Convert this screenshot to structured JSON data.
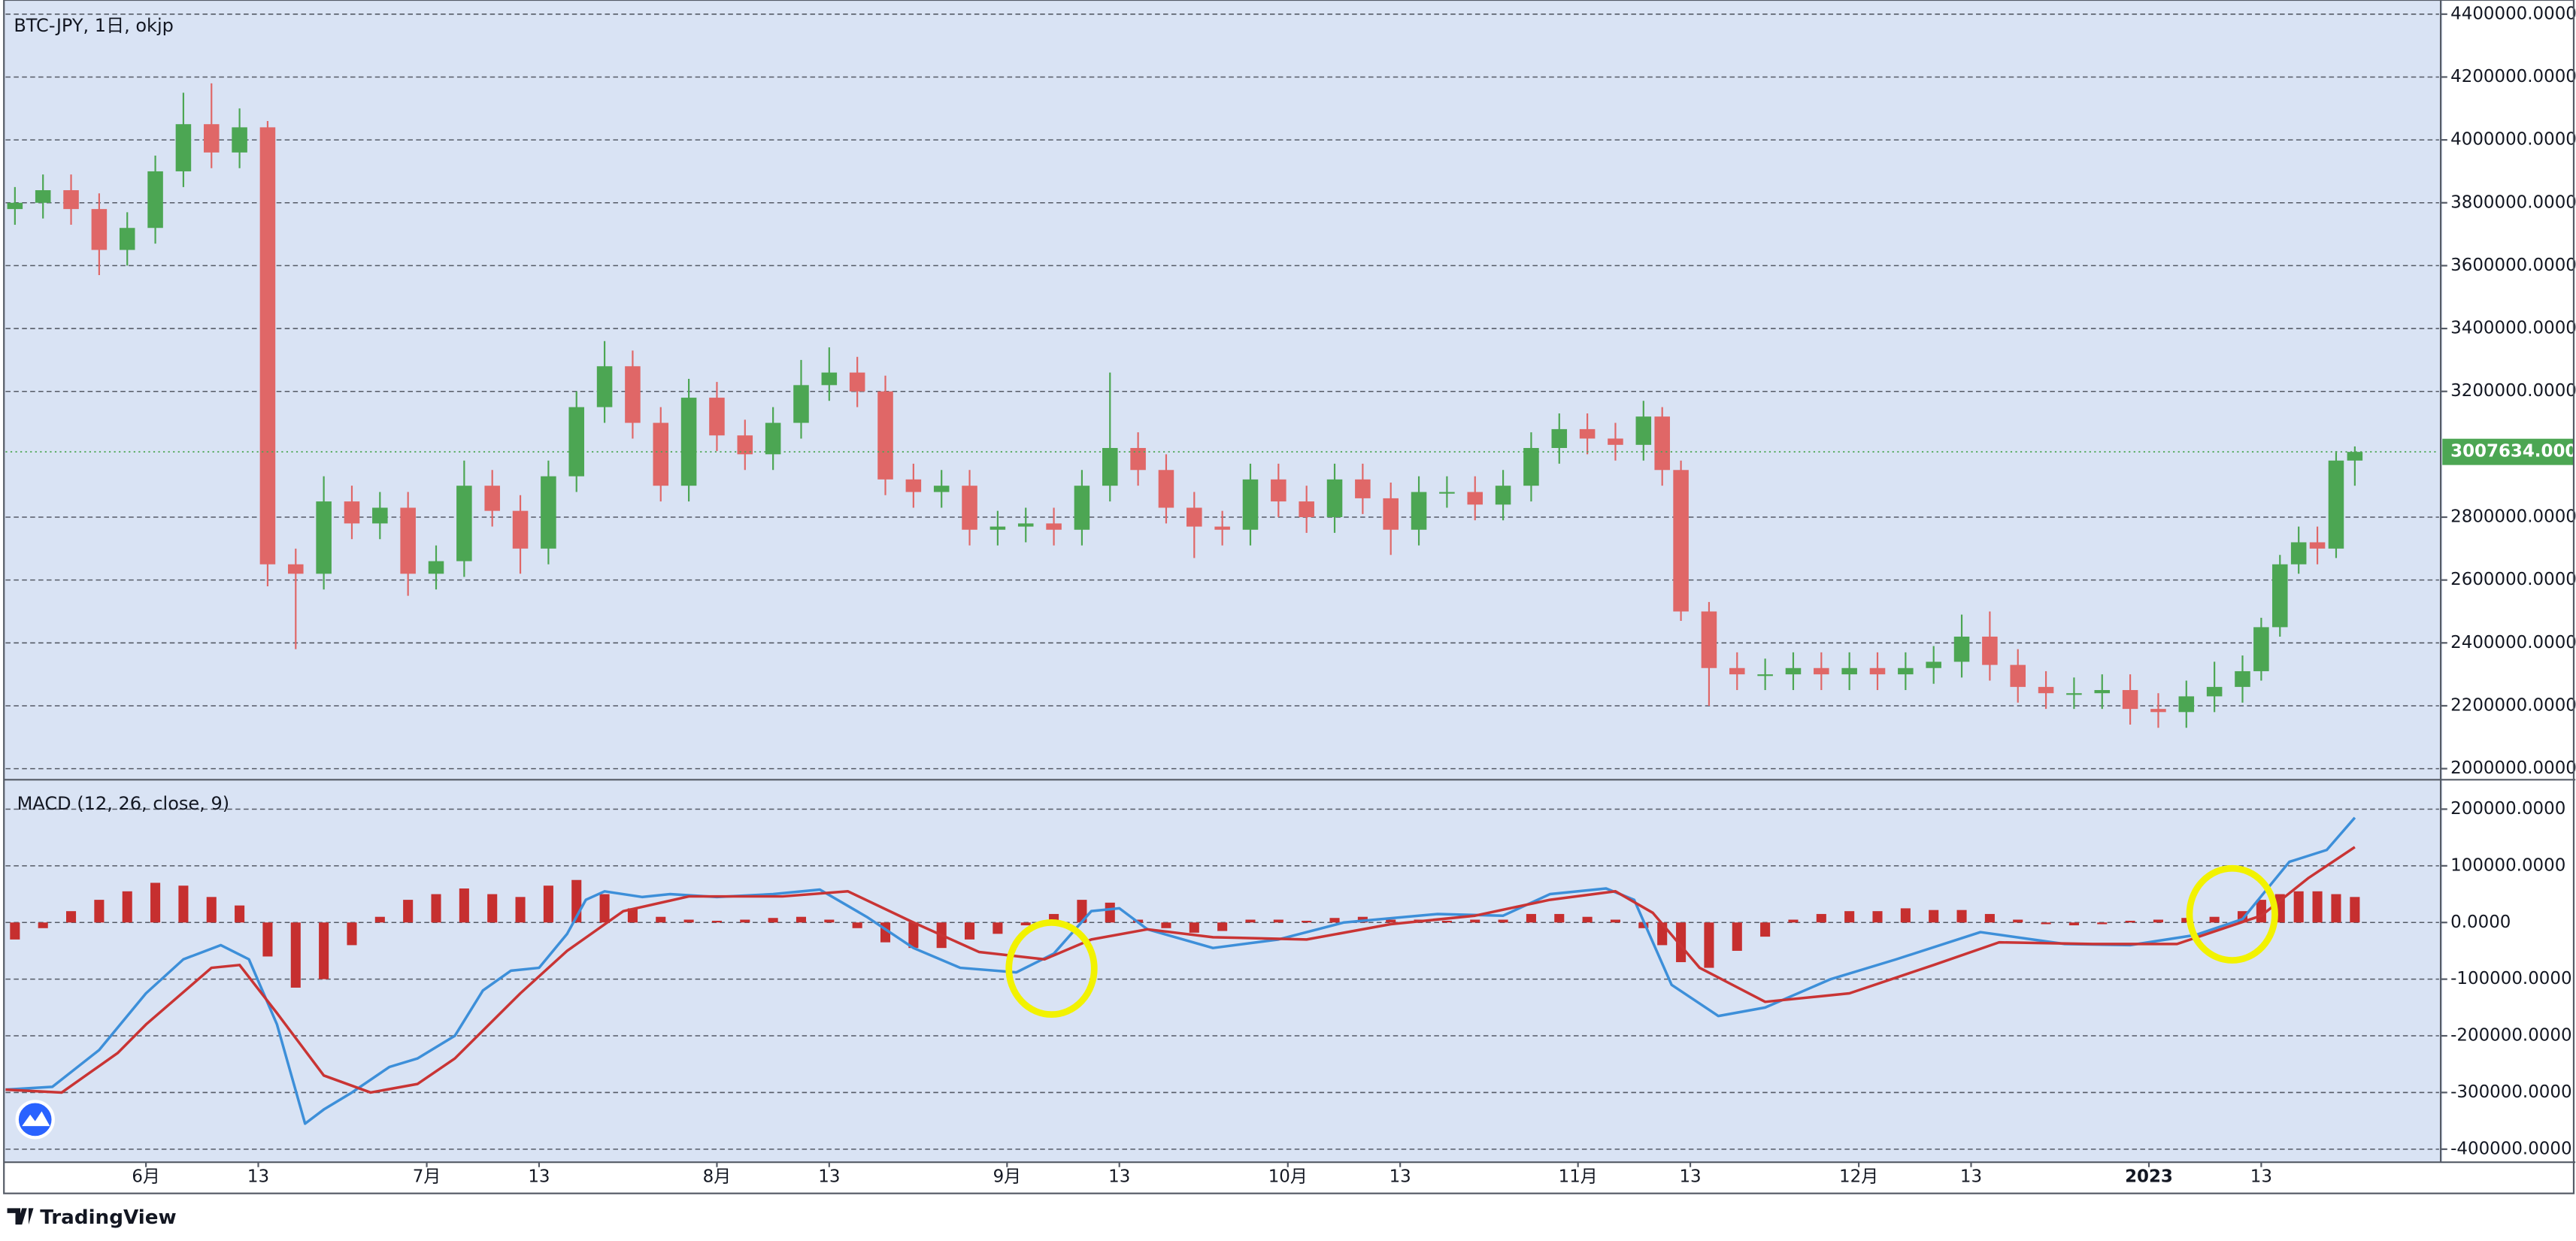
{
  "chart_data": [
    {
      "type": "candlestick",
      "title": "BTC-JPY, 1日, okjp",
      "x": [
        17,
        20,
        23,
        26,
        29,
        32,
        35,
        38,
        41,
        44,
        47,
        50,
        53,
        56,
        59,
        62,
        65,
        68,
        71,
        74,
        77,
        80,
        83,
        86,
        89,
        92,
        95,
        98,
        101,
        104,
        107,
        110,
        113,
        116,
        119,
        122,
        125,
        128,
        131,
        134,
        137,
        140,
        143,
        146,
        149,
        152,
        155,
        158,
        161,
        164,
        167,
        170,
        173,
        176,
        179,
        182,
        185,
        188,
        191,
        193,
        195,
        198,
        201,
        204,
        207,
        210,
        213,
        216,
        219,
        222,
        225,
        228,
        231,
        234,
        237,
        240,
        243,
        246,
        249,
        252,
        255,
        257,
        259,
        261,
        263,
        265,
        267
      ],
      "open": [
        3780000,
        3800000,
        3840000,
        3780000,
        3650000,
        3720000,
        3900000,
        4050000,
        3960000,
        4040000,
        2650000,
        2620000,
        2850000,
        2780000,
        2830000,
        2620000,
        2660000,
        2900000,
        2820000,
        2700000,
        2930000,
        3150000,
        3280000,
        3100000,
        2900000,
        3180000,
        3060000,
        3000000,
        3100000,
        3220000,
        3260000,
        3200000,
        2920000,
        2880000,
        2900000,
        2760000,
        2770000,
        2780000,
        2760000,
        2900000,
        3020000,
        2950000,
        2830000,
        2770000,
        2760000,
        2920000,
        2850000,
        2800000,
        2920000,
        2860000,
        2760000,
        2880000,
        2880000,
        2840000,
        2900000,
        3020000,
        3080000,
        3050000,
        3030000,
        3120000,
        2950000,
        2500000,
        2320000,
        2300000,
        2300000,
        2320000,
        2300000,
        2320000,
        2300000,
        2320000,
        2340000,
        2420000,
        2330000,
        2260000,
        2240000,
        2240000,
        2250000,
        2190000,
        2180000,
        2230000,
        2260000,
        2310000,
        2450000,
        2650000,
        2720000,
        2700000,
        2980000
      ],
      "high": [
        3850000,
        3890000,
        3890000,
        3830000,
        3770000,
        3950000,
        4150000,
        4180000,
        4100000,
        4060000,
        2700000,
        2930000,
        2900000,
        2880000,
        2880000,
        2710000,
        2980000,
        2950000,
        2870000,
        2980000,
        3200000,
        3360000,
        3330000,
        3150000,
        3240000,
        3230000,
        3110000,
        3150000,
        3300000,
        3340000,
        3310000,
        3250000,
        2970000,
        2950000,
        2950000,
        2820000,
        2830000,
        2830000,
        2950000,
        3260000,
        3070000,
        3000000,
        2880000,
        2820000,
        2970000,
        2970000,
        2900000,
        2970000,
        2970000,
        2910000,
        2930000,
        2930000,
        2930000,
        2950000,
        3070000,
        3130000,
        3130000,
        3100000,
        3170000,
        3150000,
        2980000,
        2530000,
        2370000,
        2350000,
        2370000,
        2370000,
        2370000,
        2370000,
        2370000,
        2390000,
        2490000,
        2500000,
        2380000,
        2310000,
        2290000,
        2300000,
        2300000,
        2240000,
        2280000,
        2340000,
        2360000,
        2480000,
        2680000,
        2770000,
        2770000,
        3010000,
        3025000
      ],
      "low": [
        3730000,
        3750000,
        3730000,
        3570000,
        3600000,
        3670000,
        3850000,
        3910000,
        3910000,
        2580000,
        2380000,
        2570000,
        2730000,
        2730000,
        2550000,
        2570000,
        2610000,
        2770000,
        2620000,
        2650000,
        2880000,
        3100000,
        3050000,
        2850000,
        2850000,
        3010000,
        2950000,
        2950000,
        3050000,
        3170000,
        3150000,
        2870000,
        2830000,
        2830000,
        2710000,
        2710000,
        2720000,
        2710000,
        2710000,
        2850000,
        2900000,
        2780000,
        2670000,
        2710000,
        2710000,
        2800000,
        2750000,
        2750000,
        2810000,
        2680000,
        2710000,
        2830000,
        2790000,
        2790000,
        2850000,
        2970000,
        3000000,
        2980000,
        2980000,
        2900000,
        2470000,
        2200000,
        2250000,
        2250000,
        2250000,
        2250000,
        2250000,
        2250000,
        2250000,
        2270000,
        2290000,
        2280000,
        2210000,
        2190000,
        2190000,
        2190000,
        2140000,
        2130000,
        2130000,
        2180000,
        2210000,
        2280000,
        2420000,
        2620000,
        2650000,
        2670000,
        2900000
      ],
      "close": [
        3800000,
        3840000,
        3780000,
        3650000,
        3720000,
        3900000,
        4050000,
        3960000,
        4040000,
        2650000,
        2620000,
        2850000,
        2780000,
        2830000,
        2620000,
        2660000,
        2900000,
        2820000,
        2700000,
        2930000,
        3150000,
        3280000,
        3100000,
        2900000,
        3180000,
        3060000,
        3000000,
        3100000,
        3220000,
        3260000,
        3200000,
        2920000,
        2880000,
        2900000,
        2760000,
        2770000,
        2780000,
        2760000,
        2900000,
        3020000,
        2950000,
        2830000,
        2770000,
        2760000,
        2920000,
        2850000,
        2800000,
        2920000,
        2860000,
        2760000,
        2880000,
        2880000,
        2840000,
        2900000,
        3020000,
        3080000,
        3050000,
        3030000,
        3120000,
        2950000,
        2500000,
        2320000,
        2300000,
        2300000,
        2320000,
        2300000,
        2320000,
        2300000,
        2320000,
        2340000,
        2420000,
        2330000,
        2260000,
        2240000,
        2240000,
        2250000,
        2190000,
        2180000,
        2230000,
        2260000,
        2310000,
        2450000,
        2650000,
        2720000,
        2700000,
        2980000,
        3007634
      ],
      "up_color": "#4ca653",
      "down_color": "#e06767",
      "last_price": {
        "value": 3007634,
        "label": "3007634.0000"
      },
      "xlim": [
        16,
        276
      ],
      "ylim": [
        1970000,
        4445000
      ],
      "yticks": [
        {
          "value": 4400000,
          "label": "4400000.0000"
        },
        {
          "value": 4200000,
          "label": "4200000.0000"
        },
        {
          "value": 4000000,
          "label": "4000000.0000"
        },
        {
          "value": 3800000,
          "label": "3800000.0000"
        },
        {
          "value": 3600000,
          "label": "3600000.0000"
        },
        {
          "value": 3400000,
          "label": "3400000.0000"
        },
        {
          "value": 3200000,
          "label": "3200000.0000"
        },
        {
          "value": 2800000,
          "label": "2800000.0000"
        },
        {
          "value": 2600000,
          "label": "2600000.0000"
        },
        {
          "value": 2400000,
          "label": "2400000.0000"
        },
        {
          "value": 2200000,
          "label": "2200000.0000"
        },
        {
          "value": 2000000,
          "label": "2000000.0000"
        }
      ],
      "grid": true
    },
    {
      "type": "macd",
      "title": "MACD (12, 26, close, 9)",
      "series": [
        {
          "kind": "line",
          "color": "#3d8fd9",
          "x": [
            16,
            21,
            26,
            31,
            35,
            39,
            42,
            45,
            48,
            50,
            53,
            57,
            60,
            64,
            67,
            70,
            73,
            76,
            78,
            80,
            84,
            87,
            92,
            98,
            103,
            108,
            113,
            118,
            124,
            128,
            132,
            135,
            138,
            145,
            152,
            159,
            169,
            176,
            181,
            187,
            190,
            194,
            199,
            204,
            211,
            218,
            227,
            236,
            243,
            250,
            255,
            260,
            264,
            267
          ],
          "values": [
            -295000,
            -290000,
            -225000,
            -125000,
            -65000,
            -40000,
            -65000,
            -180000,
            -355000,
            -330000,
            -300000,
            -255000,
            -240000,
            -200000,
            -120000,
            -85000,
            -80000,
            -20000,
            40000,
            55000,
            45000,
            50000,
            45000,
            50000,
            58000,
            10000,
            -45000,
            -80000,
            -88000,
            -55000,
            20000,
            25000,
            -12000,
            -45000,
            -30000,
            0,
            15000,
            12000,
            50000,
            60000,
            40000,
            -110000,
            -165000,
            -150000,
            -100000,
            -65000,
            -17000,
            -38000,
            -40000,
            -22000,
            6000,
            107000,
            128000,
            185000
          ]
        },
        {
          "kind": "line",
          "color": "#c93434",
          "x": [
            16,
            22,
            28,
            31,
            38,
            41,
            45,
            50,
            55,
            60,
            64,
            71,
            76,
            82,
            89,
            99,
            106,
            113,
            120,
            127,
            132,
            138,
            145,
            155,
            164,
            173,
            181,
            188,
            192,
            197,
            204,
            213,
            222,
            229,
            239,
            248,
            257,
            262,
            267
          ],
          "values": [
            -295000,
            -300000,
            -230000,
            -180000,
            -80000,
            -75000,
            -160000,
            -270000,
            -300000,
            -285000,
            -240000,
            -125000,
            -50000,
            20000,
            46000,
            46000,
            55000,
            0,
            -52000,
            -65000,
            -30000,
            -12000,
            -26000,
            -30000,
            -3000,
            12000,
            40000,
            55000,
            17000,
            -80000,
            -140000,
            -125000,
            -75000,
            -35000,
            -38000,
            -38000,
            12000,
            78000,
            133000
          ]
        },
        {
          "kind": "histogram",
          "color": "#c62f2f",
          "x": [
            17,
            20,
            23,
            26,
            29,
            32,
            35,
            38,
            41,
            44,
            47,
            50,
            53,
            56,
            59,
            62,
            65,
            68,
            71,
            74,
            77,
            80,
            83,
            86,
            89,
            92,
            95,
            98,
            101,
            104,
            107,
            110,
            113,
            116,
            119,
            122,
            125,
            128,
            131,
            134,
            137,
            140,
            143,
            146,
            149,
            152,
            155,
            158,
            161,
            164,
            167,
            170,
            173,
            176,
            179,
            182,
            185,
            188,
            191,
            193,
            195,
            198,
            201,
            204,
            207,
            210,
            213,
            216,
            219,
            222,
            225,
            228,
            231,
            234,
            237,
            240,
            243,
            246,
            249,
            252,
            255,
            257,
            259,
            261,
            263,
            265,
            267
          ],
          "values": [
            -30000,
            -10000,
            20000,
            40000,
            55000,
            70000,
            65000,
            45000,
            30000,
            -60000,
            -115000,
            -100000,
            -40000,
            10000,
            40000,
            50000,
            60000,
            50000,
            45000,
            65000,
            75000,
            50000,
            25000,
            10000,
            5000,
            3000,
            5000,
            8000,
            10000,
            5000,
            -10000,
            -35000,
            -45000,
            -45000,
            -30000,
            -20000,
            -5000,
            15000,
            40000,
            35000,
            5000,
            -10000,
            -18000,
            -15000,
            5000,
            5000,
            3000,
            8000,
            10000,
            5000,
            5000,
            3000,
            5000,
            5000,
            15000,
            15000,
            10000,
            5000,
            -10000,
            -40000,
            -70000,
            -80000,
            -50000,
            -25000,
            5000,
            15000,
            20000,
            20000,
            25000,
            22000,
            22000,
            15000,
            5000,
            -3000,
            -5000,
            -3000,
            3000,
            5000,
            8000,
            10000,
            20000,
            40000,
            50000,
            55000,
            55000,
            50000,
            45000
          ]
        }
      ],
      "xlim": [
        16,
        276
      ],
      "ylim": [
        -423000,
        249000
      ],
      "yticks": [
        {
          "value": 200000,
          "label": "200000.0000"
        },
        {
          "value": 100000,
          "label": "100000.0000"
        },
        {
          "value": 0,
          "label": "0.0000"
        },
        {
          "value": -100000,
          "label": "-100000.0000"
        },
        {
          "value": -200000,
          "label": "-200000.0000"
        },
        {
          "value": -300000,
          "label": "-300000.0000"
        },
        {
          "value": -400000,
          "label": "-400000.0000"
        }
      ],
      "xticks": [
        {
          "value": 31,
          "label": "6月"
        },
        {
          "value": 43,
          "label": "13"
        },
        {
          "value": 61,
          "label": "7月"
        },
        {
          "value": 73,
          "label": "13"
        },
        {
          "value": 92,
          "label": "8月"
        },
        {
          "value": 104,
          "label": "13"
        },
        {
          "value": 123,
          "label": "9月"
        },
        {
          "value": 135,
          "label": "13"
        },
        {
          "value": 153,
          "label": "10月"
        },
        {
          "value": 165,
          "label": "13"
        },
        {
          "value": 184,
          "label": "11月"
        },
        {
          "value": 196,
          "label": "13"
        },
        {
          "value": 214,
          "label": "12月"
        },
        {
          "value": 226,
          "label": "13"
        },
        {
          "value": 245,
          "label": "2023"
        },
        {
          "value": 257,
          "label": "13"
        }
      ],
      "grid": true
    }
  ],
  "footer": {
    "brand": "TradingView"
  }
}
